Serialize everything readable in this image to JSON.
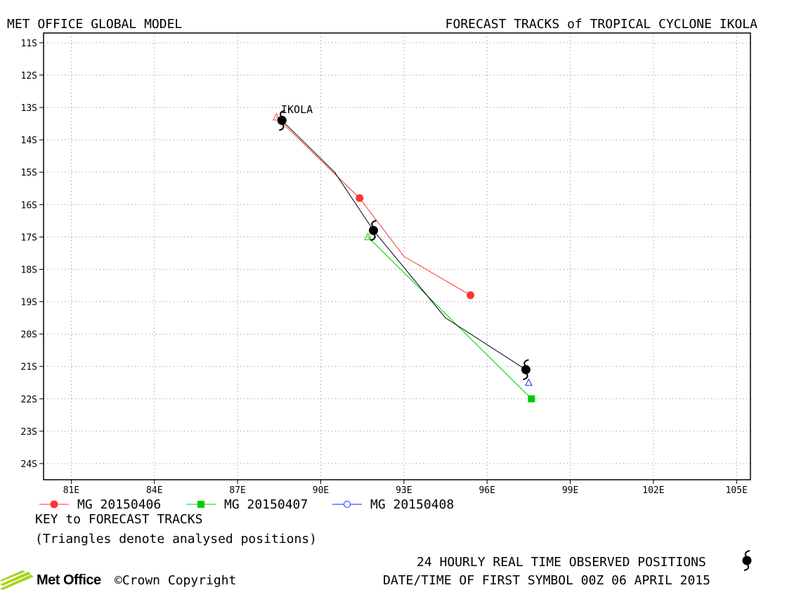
{
  "header": {
    "left_title": "MET OFFICE GLOBAL MODEL",
    "right_title": "FORECAST TRACKS of TROPICAL CYCLONE IKOLA"
  },
  "chart_data": {
    "type": "line",
    "xaxis": {
      "unit": "degrees east",
      "range": [
        80.0,
        105.5
      ],
      "ticks": [
        81,
        84,
        87,
        90,
        93,
        96,
        99,
        102,
        105
      ],
      "tick_labels": [
        "81E",
        "84E",
        "87E",
        "90E",
        "93E",
        "96E",
        "99E",
        "102E",
        "105E"
      ]
    },
    "yaxis": {
      "unit": "degrees south",
      "range": [
        10.7,
        24.5
      ],
      "ticks": [
        11,
        12,
        13,
        14,
        15,
        16,
        17,
        18,
        19,
        20,
        21,
        22,
        23,
        24
      ],
      "tick_labels": [
        "11S",
        "12S",
        "13S",
        "14S",
        "15S",
        "16S",
        "17S",
        "18S",
        "19S",
        "20S",
        "21S",
        "22S",
        "23S",
        "24S"
      ]
    },
    "grid": true,
    "storm_label": "IKOLA",
    "observed_track": {
      "color": "#000000",
      "points": [
        [
          88.6,
          13.4
        ],
        [
          90.5,
          15.0
        ],
        [
          91.9,
          16.8
        ],
        [
          94.5,
          19.5
        ],
        [
          97.4,
          21.1
        ]
      ],
      "symbol_points": [
        [
          88.6,
          13.4
        ],
        [
          91.9,
          16.8
        ],
        [
          97.4,
          21.1
        ]
      ]
    },
    "series": [
      {
        "name": "MG 20150406",
        "color": "#ff3333",
        "marker": "circle",
        "points": [
          [
            88.4,
            13.3
          ],
          [
            91.4,
            15.8
          ],
          [
            93.0,
            17.6
          ],
          [
            95.4,
            18.8
          ]
        ],
        "marker_points": [
          [
            91.4,
            15.8
          ],
          [
            95.4,
            18.8
          ]
        ],
        "analysed_position": [
          88.4,
          13.3
        ]
      },
      {
        "name": "MG 20150407",
        "color": "#00cc00",
        "marker": "square",
        "points": [
          [
            91.7,
            17.0
          ],
          [
            97.6,
            22.0
          ]
        ],
        "marker_points": [
          [
            97.6,
            22.0
          ]
        ],
        "analysed_position": [
          91.7,
          17.0
        ]
      },
      {
        "name": "MG 20150408",
        "color": "#0033ff",
        "marker": "open-circle",
        "points": [
          [
            97.5,
            21.5
          ]
        ],
        "marker_points": [],
        "analysed_position": [
          97.5,
          21.5
        ]
      }
    ]
  },
  "legend": {
    "key_title": "KEY to FORECAST TRACKS",
    "key_note": "(Triangles denote analysed positions)"
  },
  "footer": {
    "brand": "Met Office",
    "copyright": "©Crown Copyright",
    "observed_note": "24 HOURLY REAL TIME OBSERVED POSITIONS",
    "datetime_note": "DATE/TIME OF FIRST SYMBOL 00Z 06 APRIL 2015"
  },
  "colors": {
    "logo_green": "#a6d41e",
    "grid": "#888888"
  }
}
